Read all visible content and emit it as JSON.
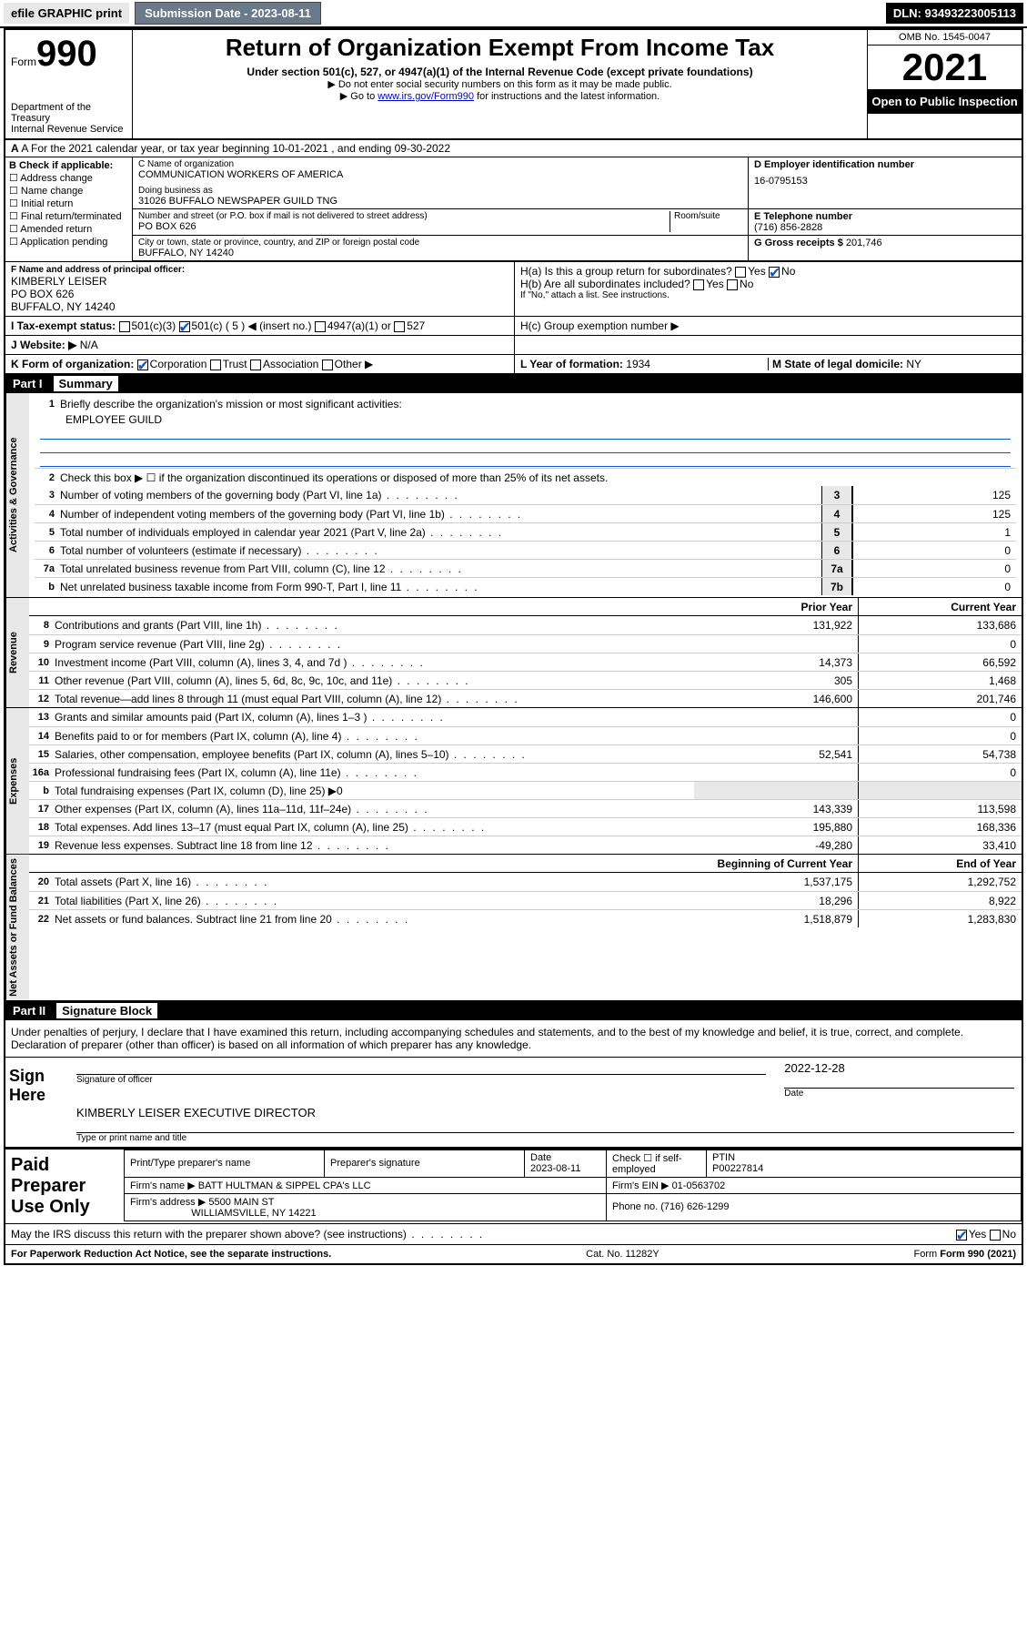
{
  "topbar": {
    "efile": "efile GRAPHIC print",
    "submission_label": "Submission Date - 2023-08-11",
    "dln": "DLN: 93493223005113"
  },
  "header": {
    "form_word": "Form",
    "form_num": "990",
    "dept": "Department of the Treasury",
    "irs": "Internal Revenue Service",
    "title": "Return of Organization Exempt From Income Tax",
    "sub1": "Under section 501(c), 527, or 4947(a)(1) of the Internal Revenue Code (except private foundations)",
    "sub2": "▶ Do not enter social security numbers on this form as it may be made public.",
    "sub3_pre": "▶ Go to ",
    "sub3_link": "www.irs.gov/Form990",
    "sub3_post": " for instructions and the latest information.",
    "omb": "OMB No. 1545-0047",
    "year": "2021",
    "open": "Open to Public Inspection"
  },
  "rowA": "A For the 2021 calendar year, or tax year beginning 10-01-2021   , and ending 09-30-2022",
  "B": {
    "hdr": "B Check if applicable:",
    "items": [
      "☐ Address change",
      "☐ Name change",
      "☐ Initial return",
      "☐ Final return/terminated",
      "☐ Amended return",
      "☐ Application pending"
    ]
  },
  "C": {
    "name_lbl": "C Name of organization",
    "name": "COMMUNICATION WORKERS OF AMERICA",
    "dba_lbl": "Doing business as",
    "dba": "31026 BUFFALO NEWSPAPER GUILD TNG",
    "street_lbl": "Number and street (or P.O. box if mail is not delivered to street address)",
    "room_lbl": "Room/suite",
    "street": "PO BOX 626",
    "city_lbl": "City or town, state or province, country, and ZIP or foreign postal code",
    "city": "BUFFALO, NY  14240"
  },
  "D": {
    "lbl": "D Employer identification number",
    "val": "16-0795153"
  },
  "E": {
    "lbl": "E Telephone number",
    "val": "(716) 856-2828"
  },
  "G": {
    "lbl": "G Gross receipts $",
    "val": "201,746"
  },
  "F": {
    "lbl": "F Name and address of principal officer:",
    "name": "KIMBERLY LEISER",
    "addr1": "PO BOX 626",
    "addr2": "BUFFALO, NY  14240"
  },
  "H": {
    "a": "H(a)  Is this a group return for subordinates?",
    "a_yes": "Yes",
    "a_no": "No",
    "b": "H(b)  Are all subordinates included?",
    "b_yes": "Yes",
    "b_no": "No",
    "b_note": "If \"No,\" attach a list. See instructions.",
    "c": "H(c)  Group exemption number ▶"
  },
  "I": {
    "lbl": "I   Tax-exempt status:",
    "c3": "501(c)(3)",
    "c": "501(c) ( 5 ) ◀ (insert no.)",
    "a1": "4947(a)(1) or",
    "s527": "527"
  },
  "J": {
    "lbl": "J   Website: ▶",
    "val": "N/A"
  },
  "K": {
    "lbl": "K Form of organization:",
    "corp": "Corporation",
    "trust": "Trust",
    "assoc": "Association",
    "other": "Other ▶"
  },
  "L": {
    "lbl": "L Year of formation:",
    "val": "1934"
  },
  "M": {
    "lbl": "M State of legal domicile:",
    "val": "NY"
  },
  "part1": {
    "label": "Part I",
    "title": "Summary"
  },
  "gov": {
    "tab": "Activities & Governance",
    "l1": "Briefly describe the organization's mission or most significant activities:",
    "l1v": "EMPLOYEE GUILD",
    "l2": "Check this box ▶ ☐  if the organization discontinued its operations or disposed of more than 25% of its net assets.",
    "rows": [
      {
        "n": "3",
        "t": "Number of voting members of the governing body (Part VI, line 1a)",
        "box": "3",
        "v": "125"
      },
      {
        "n": "4",
        "t": "Number of independent voting members of the governing body (Part VI, line 1b)",
        "box": "4",
        "v": "125"
      },
      {
        "n": "5",
        "t": "Total number of individuals employed in calendar year 2021 (Part V, line 2a)",
        "box": "5",
        "v": "1"
      },
      {
        "n": "6",
        "t": "Total number of volunteers (estimate if necessary)",
        "box": "6",
        "v": "0"
      },
      {
        "n": "7a",
        "t": "Total unrelated business revenue from Part VIII, column (C), line 12",
        "box": "7a",
        "v": "0"
      },
      {
        "n": "b",
        "t": "Net unrelated business taxable income from Form 990-T, Part I, line 11",
        "box": "7b",
        "v": "0"
      }
    ]
  },
  "rev": {
    "tab": "Revenue",
    "hdr_prior": "Prior Year",
    "hdr_curr": "Current Year",
    "rows": [
      {
        "n": "8",
        "t": "Contributions and grants (Part VIII, line 1h)",
        "p": "131,922",
        "c": "133,686"
      },
      {
        "n": "9",
        "t": "Program service revenue (Part VIII, line 2g)",
        "p": "",
        "c": "0"
      },
      {
        "n": "10",
        "t": "Investment income (Part VIII, column (A), lines 3, 4, and 7d )",
        "p": "14,373",
        "c": "66,592"
      },
      {
        "n": "11",
        "t": "Other revenue (Part VIII, column (A), lines 5, 6d, 8c, 9c, 10c, and 11e)",
        "p": "305",
        "c": "1,468"
      },
      {
        "n": "12",
        "t": "Total revenue—add lines 8 through 11 (must equal Part VIII, column (A), line 12)",
        "p": "146,600",
        "c": "201,746"
      }
    ]
  },
  "exp": {
    "tab": "Expenses",
    "rows": [
      {
        "n": "13",
        "t": "Grants and similar amounts paid (Part IX, column (A), lines 1–3 )",
        "p": "",
        "c": "0"
      },
      {
        "n": "14",
        "t": "Benefits paid to or for members (Part IX, column (A), line 4)",
        "p": "",
        "c": "0"
      },
      {
        "n": "15",
        "t": "Salaries, other compensation, employee benefits (Part IX, column (A), lines 5–10)",
        "p": "52,541",
        "c": "54,738"
      },
      {
        "n": "16a",
        "t": "Professional fundraising fees (Part IX, column (A), line 11e)",
        "p": "",
        "c": "0"
      },
      {
        "n": "b",
        "t": "Total fundraising expenses (Part IX, column (D), line 25) ▶0",
        "p": "—",
        "c": "—"
      },
      {
        "n": "17",
        "t": "Other expenses (Part IX, column (A), lines 11a–11d, 11f–24e)",
        "p": "143,339",
        "c": "113,598"
      },
      {
        "n": "18",
        "t": "Total expenses. Add lines 13–17 (must equal Part IX, column (A), line 25)",
        "p": "195,880",
        "c": "168,336"
      },
      {
        "n": "19",
        "t": "Revenue less expenses. Subtract line 18 from line 12",
        "p": "-49,280",
        "c": "33,410"
      }
    ]
  },
  "net": {
    "tab": "Net Assets or Fund Balances",
    "hdr_beg": "Beginning of Current Year",
    "hdr_end": "End of Year",
    "rows": [
      {
        "n": "20",
        "t": "Total assets (Part X, line 16)",
        "p": "1,537,175",
        "c": "1,292,752"
      },
      {
        "n": "21",
        "t": "Total liabilities (Part X, line 26)",
        "p": "18,296",
        "c": "8,922"
      },
      {
        "n": "22",
        "t": "Net assets or fund balances. Subtract line 21 from line 20",
        "p": "1,518,879",
        "c": "1,283,830"
      }
    ]
  },
  "part2": {
    "label": "Part II",
    "title": "Signature Block"
  },
  "penalties": "Under penalties of perjury, I declare that I have examined this return, including accompanying schedules and statements, and to the best of my knowledge and belief, it is true, correct, and complete. Declaration of preparer (other than officer) is based on all information of which preparer has any knowledge.",
  "sign": {
    "here": "Sign Here",
    "sig_lbl": "Signature of officer",
    "date": "2022-12-28",
    "date_lbl": "Date",
    "name": "KIMBERLY LEISER  EXECUTIVE DIRECTOR",
    "name_lbl": "Type or print name and title"
  },
  "paid": {
    "label": "Paid Preparer Use Only",
    "h1": "Print/Type preparer's name",
    "h2": "Preparer's signature",
    "h3": "Date",
    "h3v": "2023-08-11",
    "h4": "Check ☐ if self-employed",
    "h5": "PTIN",
    "h5v": "P00227814",
    "firm_lbl": "Firm's name   ▶",
    "firm": "BATT HULTMAN & SIPPEL CPA's LLC",
    "ein_lbl": "Firm's EIN ▶",
    "ein": "01-0563702",
    "addr_lbl": "Firm's address ▶",
    "addr1": "5500 MAIN ST",
    "addr2": "WILLIAMSVILLE, NY  14221",
    "phone_lbl": "Phone no.",
    "phone": "(716) 626-1299"
  },
  "may": {
    "txt": "May the IRS discuss this return with the preparer shown above? (see instructions)",
    "yes": "Yes",
    "no": "No"
  },
  "foot": {
    "pra": "For Paperwork Reduction Act Notice, see the separate instructions.",
    "cat": "Cat. No. 11282Y",
    "form": "Form 990 (2021)"
  },
  "colors": {
    "link": "#0000cc",
    "checked": "#0a58ca",
    "graybtn": "#6a7a8a",
    "shade": "#e8e8e8"
  }
}
